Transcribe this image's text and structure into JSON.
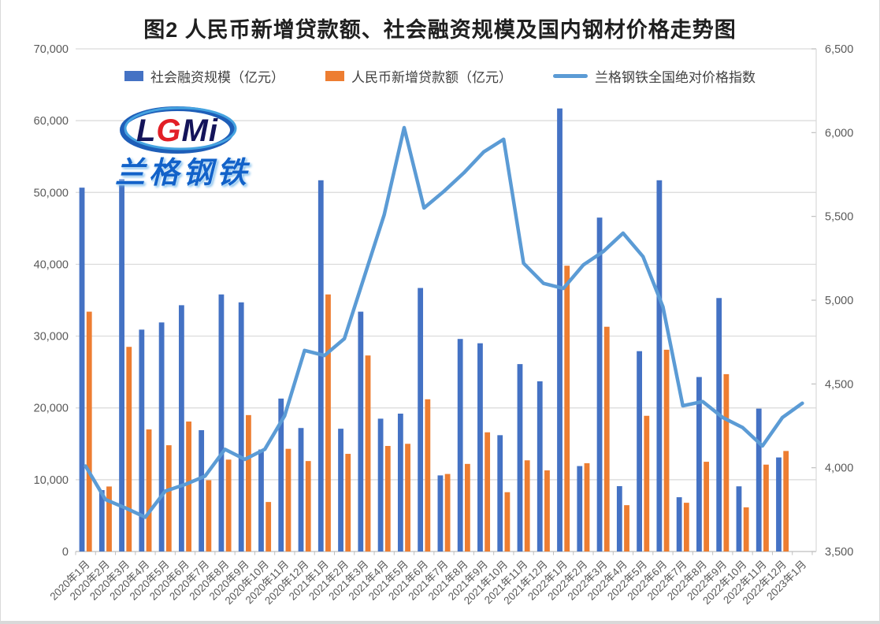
{
  "title": "图2 人民币新增贷款额、社会融资规模及国内钢材价格走势图",
  "logo": {
    "main": "LGMi",
    "sub": "兰格钢铁"
  },
  "chart_data": {
    "type": "bar+line combo, dual axis",
    "categories": [
      "2020年1月",
      "2020年2月",
      "2020年3月",
      "2020年4月",
      "2020年5月",
      "2020年6月",
      "2020年7月",
      "2020年8月",
      "2020年9月",
      "2020年10月",
      "2020年11月",
      "2020年12月",
      "2021年1月",
      "2021年2月",
      "2021年3月",
      "2021年4月",
      "2021年5月",
      "2021年6月",
      "2021年7月",
      "2021年8月",
      "2021年9月",
      "2021年10月",
      "2021年11月",
      "2021年12月",
      "2022年1月",
      "2022年2月",
      "2022年3月",
      "2022年4月",
      "2022年5月",
      "2022年6月",
      "2022年7月",
      "2022年8月",
      "2022年9月",
      "2022年10月",
      "2022年11月",
      "2022年12月",
      "2023年1月"
    ],
    "series": [
      {
        "name": "社会融资规模（亿元）",
        "type": "bar",
        "axis": "left",
        "color": "#4472C4",
        "values": [
          50670,
          8554,
          51830,
          30900,
          31900,
          34300,
          16900,
          35800,
          34700,
          14200,
          21300,
          17200,
          51700,
          17100,
          33400,
          18500,
          19200,
          36700,
          10600,
          29600,
          29000,
          16200,
          26100,
          23700,
          61700,
          11900,
          46500,
          9102,
          27900,
          51700,
          7561,
          24300,
          35300,
          9079,
          19900,
          13100,
          null
        ]
      },
      {
        "name": "人民币新增贷款额（亿元）",
        "type": "bar",
        "axis": "left",
        "color": "#ED7D31",
        "values": [
          33400,
          9057,
          28500,
          17000,
          14800,
          18100,
          9927,
          12800,
          19000,
          6898,
          14300,
          12600,
          35800,
          13600,
          27300,
          14700,
          15000,
          21200,
          10800,
          12200,
          16600,
          8262,
          12700,
          11300,
          39800,
          12300,
          31300,
          6454,
          18900,
          28100,
          6790,
          12500,
          24700,
          6152,
          12100,
          14000,
          null
        ]
      },
      {
        "name": "兰格钢铁全国绝对价格指数",
        "type": "line",
        "axis": "right",
        "color": "#5B9BD5",
        "values": [
          4010,
          3810,
          3760,
          3705,
          3860,
          3900,
          3950,
          4110,
          4050,
          4110,
          4310,
          4700,
          4670,
          4770,
          5140,
          5510,
          6030,
          5550,
          5650,
          5760,
          5885,
          5960,
          5220,
          5100,
          5070,
          5210,
          5290,
          5400,
          5260,
          4960,
          4370,
          4395,
          4300,
          4240,
          4130,
          4300,
          4385
        ]
      }
    ],
    "left_axis": {
      "min": 0,
      "max": 70000,
      "step": 10000,
      "labels": [
        "0",
        "10,000",
        "20,000",
        "30,000",
        "40,000",
        "50,000",
        "60,000",
        "70,000"
      ]
    },
    "right_axis": {
      "min": 3500,
      "max": 6500,
      "step": 500,
      "labels": [
        "3,500",
        "4,000",
        "4,500",
        "5,000",
        "5,500",
        "6,000",
        "6,500"
      ]
    },
    "grid": true,
    "legend_position": "top"
  }
}
